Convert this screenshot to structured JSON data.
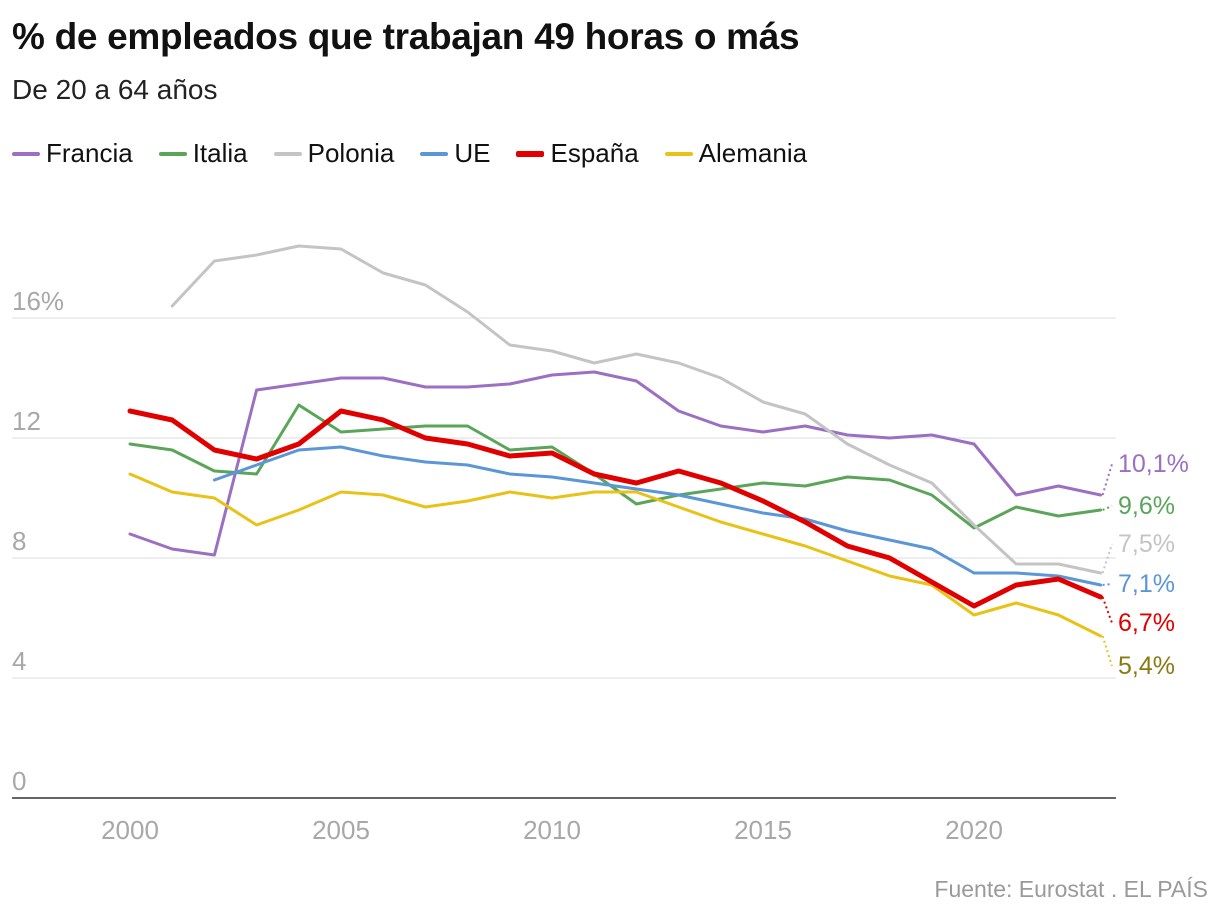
{
  "header": {
    "title": "% de empleados que trabajan 49 horas o más",
    "subtitle": "De 20 a 64 años"
  },
  "source": "Fuente: Eurostat . EL PAÍS",
  "chart_data": {
    "type": "line",
    "title": "% de empleados que trabajan 49 horas o más",
    "subtitle": "De 20 a 64 años",
    "xlabel": "",
    "ylabel": "",
    "xlim": [
      1998,
      2024
    ],
    "ylim": [
      0,
      19
    ],
    "x_ticks": [
      2000,
      2005,
      2010,
      2015,
      2020
    ],
    "y_ticks": [
      0,
      4,
      8,
      12,
      16
    ],
    "y_tick_labels": [
      "0",
      "4",
      "8",
      "12",
      "16%"
    ],
    "grid": "horizontal",
    "legend": "top-left",
    "series": [
      {
        "name": "Francia",
        "color": "#9b6fc2",
        "width": 3,
        "end_label": "10,1%",
        "points": [
          [
            2000,
            8.8
          ],
          [
            2001,
            8.3
          ],
          [
            2002,
            8.1
          ],
          [
            2003,
            13.6
          ],
          [
            2004,
            13.8
          ],
          [
            2005,
            14.0
          ],
          [
            2006,
            14.0
          ],
          [
            2007,
            13.7
          ],
          [
            2008,
            13.7
          ],
          [
            2009,
            13.8
          ],
          [
            2010,
            14.1
          ],
          [
            2011,
            14.2
          ],
          [
            2012,
            13.9
          ],
          [
            2013,
            12.9
          ],
          [
            2014,
            12.4
          ],
          [
            2015,
            12.2
          ],
          [
            2016,
            12.4
          ],
          [
            2017,
            12.1
          ],
          [
            2018,
            12.0
          ],
          [
            2019,
            12.1
          ],
          [
            2020,
            11.8
          ],
          [
            2021,
            10.1
          ],
          [
            2022,
            10.4
          ],
          [
            2023,
            10.1
          ]
        ]
      },
      {
        "name": "Italia",
        "color": "#5aa55a",
        "width": 3,
        "end_label": "9,6%",
        "points": [
          [
            2000,
            11.8
          ],
          [
            2001,
            11.6
          ],
          [
            2002,
            10.9
          ],
          [
            2003,
            10.8
          ],
          [
            2004,
            13.1
          ],
          [
            2005,
            12.2
          ],
          [
            2006,
            12.3
          ],
          [
            2007,
            12.4
          ],
          [
            2008,
            12.4
          ],
          [
            2009,
            11.6
          ],
          [
            2010,
            11.7
          ],
          [
            2011,
            10.8
          ],
          [
            2012,
            9.8
          ],
          [
            2013,
            10.1
          ],
          [
            2014,
            10.3
          ],
          [
            2015,
            10.5
          ],
          [
            2016,
            10.4
          ],
          [
            2017,
            10.7
          ],
          [
            2018,
            10.6
          ],
          [
            2019,
            10.1
          ],
          [
            2020,
            9.0
          ],
          [
            2021,
            9.7
          ],
          [
            2022,
            9.4
          ],
          [
            2023,
            9.6
          ]
        ]
      },
      {
        "name": "Polonia",
        "color": "#c4c4c4",
        "width": 3,
        "end_label": "7,5%",
        "points": [
          [
            2001,
            16.4
          ],
          [
            2002,
            17.9
          ],
          [
            2003,
            18.1
          ],
          [
            2004,
            18.4
          ],
          [
            2005,
            18.3
          ],
          [
            2006,
            17.5
          ],
          [
            2007,
            17.1
          ],
          [
            2008,
            16.2
          ],
          [
            2009,
            15.1
          ],
          [
            2010,
            14.9
          ],
          [
            2011,
            14.5
          ],
          [
            2012,
            14.8
          ],
          [
            2013,
            14.5
          ],
          [
            2014,
            14.0
          ],
          [
            2015,
            13.2
          ],
          [
            2016,
            12.8
          ],
          [
            2017,
            11.8
          ],
          [
            2018,
            11.1
          ],
          [
            2019,
            10.5
          ],
          [
            2020,
            9.1
          ],
          [
            2021,
            7.8
          ],
          [
            2022,
            7.8
          ],
          [
            2023,
            7.5
          ]
        ]
      },
      {
        "name": "UE",
        "color": "#5b96d6",
        "width": 3,
        "end_label": "7,1%",
        "points": [
          [
            2002,
            10.6
          ],
          [
            2003,
            11.1
          ],
          [
            2004,
            11.6
          ],
          [
            2005,
            11.7
          ],
          [
            2006,
            11.4
          ],
          [
            2007,
            11.2
          ],
          [
            2008,
            11.1
          ],
          [
            2009,
            10.8
          ],
          [
            2010,
            10.7
          ],
          [
            2011,
            10.5
          ],
          [
            2012,
            10.3
          ],
          [
            2013,
            10.1
          ],
          [
            2014,
            9.8
          ],
          [
            2015,
            9.5
          ],
          [
            2016,
            9.3
          ],
          [
            2017,
            8.9
          ],
          [
            2018,
            8.6
          ],
          [
            2019,
            8.3
          ],
          [
            2020,
            7.5
          ],
          [
            2021,
            7.5
          ],
          [
            2022,
            7.4
          ],
          [
            2023,
            7.1
          ]
        ]
      },
      {
        "name": "España",
        "color": "#e00000",
        "width": 5,
        "end_label": "6,7%",
        "points": [
          [
            2000,
            12.9
          ],
          [
            2001,
            12.6
          ],
          [
            2002,
            11.6
          ],
          [
            2003,
            11.3
          ],
          [
            2004,
            11.8
          ],
          [
            2005,
            12.9
          ],
          [
            2006,
            12.6
          ],
          [
            2007,
            12.0
          ],
          [
            2008,
            11.8
          ],
          [
            2009,
            11.4
          ],
          [
            2010,
            11.5
          ],
          [
            2011,
            10.8
          ],
          [
            2012,
            10.5
          ],
          [
            2013,
            10.9
          ],
          [
            2014,
            10.5
          ],
          [
            2015,
            9.9
          ],
          [
            2016,
            9.2
          ],
          [
            2017,
            8.4
          ],
          [
            2018,
            8.0
          ],
          [
            2019,
            7.2
          ],
          [
            2020,
            6.4
          ],
          [
            2021,
            7.1
          ],
          [
            2022,
            7.3
          ],
          [
            2023,
            6.7
          ]
        ]
      },
      {
        "name": "Alemania",
        "color": "#e8c217",
        "width": 3,
        "end_label": "5,4%",
        "label_color": "#8a7a10",
        "points": [
          [
            2000,
            10.8
          ],
          [
            2001,
            10.2
          ],
          [
            2002,
            10.0
          ],
          [
            2003,
            9.1
          ],
          [
            2004,
            9.6
          ],
          [
            2005,
            10.2
          ],
          [
            2006,
            10.1
          ],
          [
            2007,
            9.7
          ],
          [
            2008,
            9.9
          ],
          [
            2009,
            10.2
          ],
          [
            2010,
            10.0
          ],
          [
            2011,
            10.2
          ],
          [
            2012,
            10.2
          ],
          [
            2013,
            9.7
          ],
          [
            2014,
            9.2
          ],
          [
            2015,
            8.8
          ],
          [
            2016,
            8.4
          ],
          [
            2017,
            7.9
          ],
          [
            2018,
            7.4
          ],
          [
            2019,
            7.1
          ],
          [
            2020,
            6.1
          ],
          [
            2021,
            6.5
          ],
          [
            2022,
            6.1
          ],
          [
            2023,
            5.4
          ]
        ]
      }
    ]
  }
}
